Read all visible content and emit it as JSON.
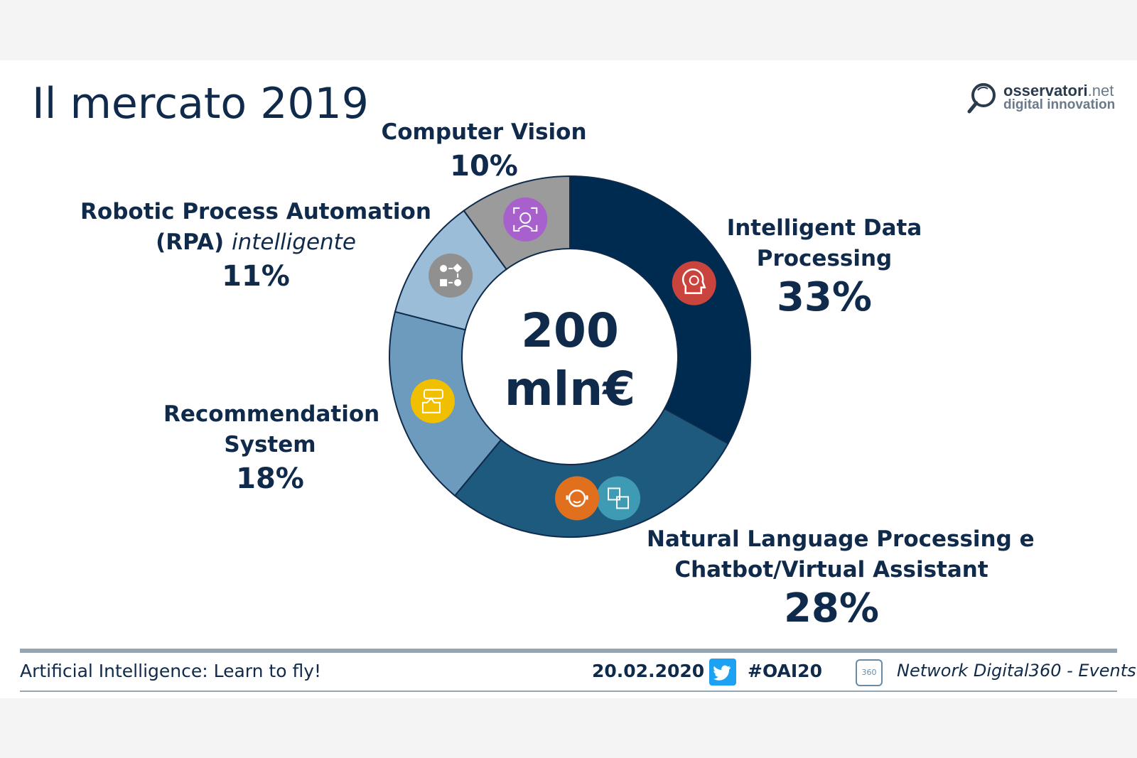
{
  "slide": {
    "title": "Il mercato 2019",
    "logo": {
      "line1_main": "osservatori",
      "line1_suffix": ".net",
      "line2": "digital innovation"
    }
  },
  "chart_data": {
    "type": "pie",
    "variant": "donut",
    "title": "Il mercato 2019",
    "center_label": [
      "200",
      "mln€"
    ],
    "total": 200,
    "unit": "mln€",
    "categories": [
      "Intelligent Data Processing",
      "Natural Language Processing e Chatbot/Virtual Assistant",
      "Recommendation System",
      "Robotic Process Automation (RPA) intelligente",
      "Computer Vision"
    ],
    "values": [
      33,
      28,
      18,
      11,
      10
    ],
    "colors": [
      "#002b50",
      "#1e5a7e",
      "#6d9bbd",
      "#9bbdd8",
      "#9b9b9b"
    ],
    "icons": [
      "brain-icon",
      "chatbot-translate-icon",
      "thumbs-up-rating-icon",
      "process-flow-icon",
      "face-scan-icon"
    ],
    "icon_colors": [
      "#c8443d",
      "#e0701e",
      "#f0bf00",
      "#909090",
      "#a861cc"
    ],
    "secondary_icon_color": "#3f9ab3"
  },
  "labels": {
    "idp": {
      "name_line1": "Intelligent Data",
      "name_line2": "Processing",
      "pct": "33%"
    },
    "nlp": {
      "name_line1": "Natural Language Processing e",
      "name_line2": "Chatbot/Virtual Assistant",
      "pct": "28%"
    },
    "rec": {
      "name_line1": "Recommendation",
      "name_line2": "System",
      "pct": "18%"
    },
    "rpa": {
      "name_line1": "Robotic Process Automation",
      "name_line2a": "(RPA) ",
      "name_line2b": "intelligente",
      "pct": "11%"
    },
    "cv": {
      "name_line1": "Computer Vision",
      "pct": "10%"
    }
  },
  "footer": {
    "event": "Artificial Intelligence: Learn to fly!",
    "date": "20.02.2020",
    "hashtag": "#OAI20",
    "network": "Network Digital360 - Events",
    "badge": "360"
  }
}
